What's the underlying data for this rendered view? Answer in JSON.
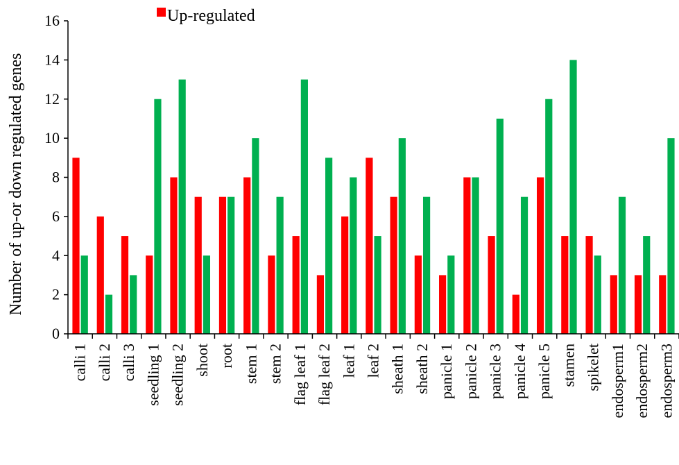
{
  "chart_data": {
    "type": "bar",
    "ylabel": "Number of up-or down regulated genes",
    "xlabel": "",
    "ylim": [
      0,
      16
    ],
    "yticks": [
      "0",
      "2",
      "4",
      "6",
      "8",
      "10",
      "12",
      "14",
      "16"
    ],
    "grid": false,
    "legend_position": "top-left",
    "categories": [
      "calli 1",
      "calli 2",
      "calli 3",
      "seedling 1",
      "seedling 2",
      "shoot",
      "root",
      "stem 1",
      "stem 2",
      "flag leaf 1",
      "flag leaf 2",
      "leaf 1",
      "leaf 2",
      "sheath 1",
      "sheath 2",
      "panicle 1",
      "panicle 2",
      "panicle 3",
      "panicle 4",
      "panicle 5",
      "stamen",
      "spikelet",
      "endosperm1",
      "endosperm2",
      "endosperm3"
    ],
    "series": [
      {
        "name": "Up-regulated",
        "color": "#ff0000",
        "values": [
          9,
          6,
          5,
          4,
          8,
          7,
          7,
          8,
          4,
          5,
          3,
          6,
          9,
          7,
          4,
          3,
          8,
          5,
          2,
          8,
          5,
          5,
          3,
          3,
          3
        ]
      },
      {
        "name": "",
        "color": "#00b050",
        "values": [
          4,
          2,
          3,
          12,
          13,
          4,
          7,
          10,
          7,
          13,
          9,
          8,
          5,
          10,
          7,
          4,
          8,
          11,
          7,
          12,
          14,
          4,
          7,
          5,
          10
        ]
      }
    ]
  }
}
